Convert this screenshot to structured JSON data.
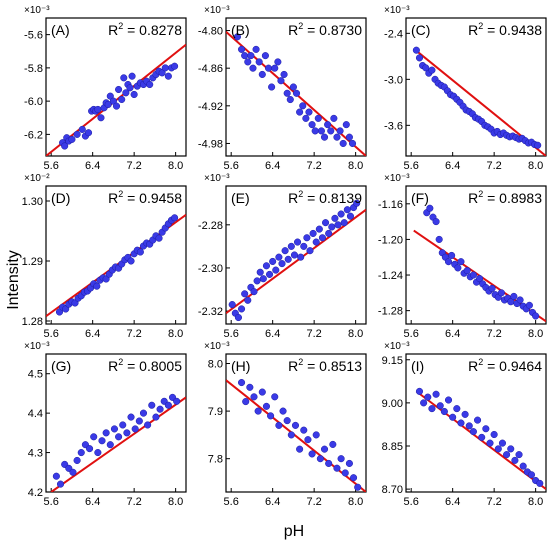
{
  "figure": {
    "ylabel": "Intensity",
    "xlabel": "pH"
  },
  "colors": {
    "point": "#3a3ae6",
    "point_edge": "#1a1aa0",
    "fit_line": "#e01010",
    "axis": "#000000"
  },
  "chart_data": [
    {
      "type": "scatter",
      "panel": "(A)",
      "r2": "0.8278",
      "exponent": "×10⁻³",
      "xlim": [
        5.5,
        8.2
      ],
      "ylim": [
        -6.33,
        -5.5
      ],
      "xticks": [
        5.6,
        6.4,
        7.2,
        8.0
      ],
      "xtick_labels": [
        "5.6",
        "6.4",
        "7.2",
        "8.0"
      ],
      "yticks": [
        -5.6,
        -5.8,
        -6.0,
        -6.2
      ],
      "ytick_labels": [
        "-5.6",
        "-5.8",
        "-6.0",
        "-6.2"
      ],
      "fit": [
        [
          5.5,
          -6.33
        ],
        [
          8.2,
          -5.66
        ]
      ],
      "x": [
        5.82,
        5.86,
        5.9,
        5.94,
        6.0,
        6.1,
        6.2,
        6.26,
        6.32,
        6.38,
        6.42,
        6.46,
        6.5,
        6.56,
        6.62,
        6.66,
        6.7,
        6.74,
        6.8,
        6.86,
        6.9,
        6.96,
        7.0,
        7.04,
        7.08,
        7.12,
        7.16,
        7.2,
        7.26,
        7.32,
        7.38,
        7.44,
        7.5,
        7.56,
        7.62,
        7.68,
        7.74,
        7.8,
        7.86,
        7.92,
        7.98
      ],
      "y": [
        -6.25,
        -6.27,
        -6.22,
        -6.24,
        -6.23,
        -6.2,
        -6.17,
        -6.21,
        -6.19,
        -6.06,
        -6.05,
        -6.06,
        -6.05,
        -6.1,
        -6.04,
        -6.01,
        -6.02,
        -5.97,
        -6.0,
        -6.03,
        -5.93,
        -5.99,
        -5.86,
        -5.95,
        -5.9,
        -5.92,
        -5.85,
        -5.96,
        -5.91,
        -5.89,
        -5.9,
        -5.88,
        -5.9,
        -5.86,
        -5.84,
        -5.82,
        -5.83,
        -5.8,
        -5.85,
        -5.8,
        -5.79
      ]
    },
    {
      "type": "scatter",
      "panel": "(B)",
      "r2": "0.8730",
      "exponent": "×10⁻³",
      "xlim": [
        5.5,
        8.2
      ],
      "ylim": [
        -5.0,
        -4.78
      ],
      "xticks": [
        5.6,
        6.4,
        7.2,
        8.0
      ],
      "xtick_labels": [
        "5.6",
        "6.4",
        "7.2",
        "8.0"
      ],
      "yticks": [
        -4.8,
        -4.86,
        -4.92,
        -4.98
      ],
      "ytick_labels": [
        "-4.80",
        "-4.86",
        "-4.92",
        "-4.98"
      ],
      "fit": [
        [
          5.5,
          -4.802
        ],
        [
          8.2,
          -5.0
        ]
      ],
      "x": [
        5.72,
        5.8,
        5.86,
        5.92,
        5.98,
        6.02,
        6.08,
        6.14,
        6.2,
        6.26,
        6.32,
        6.38,
        6.44,
        6.5,
        6.56,
        6.62,
        6.68,
        6.74,
        6.8,
        6.86,
        6.92,
        6.98,
        7.04,
        7.1,
        7.16,
        7.22,
        7.28,
        7.34,
        7.4,
        7.46,
        7.52,
        7.58,
        7.64,
        7.7,
        7.76,
        7.82,
        7.88,
        7.94
      ],
      "y": [
        -4.81,
        -4.83,
        -4.84,
        -4.85,
        -4.84,
        -4.86,
        -4.83,
        -4.85,
        -4.87,
        -4.84,
        -4.86,
        -4.89,
        -4.86,
        -4.85,
        -4.88,
        -4.87,
        -4.9,
        -4.91,
        -4.89,
        -4.9,
        -4.93,
        -4.92,
        -4.94,
        -4.93,
        -4.95,
        -4.96,
        -4.94,
        -4.96,
        -4.97,
        -4.95,
        -4.96,
        -4.94,
        -4.97,
        -4.96,
        -4.98,
        -4.95,
        -4.97,
        -4.98
      ]
    },
    {
      "type": "scatter",
      "panel": "(C)",
      "r2": "0.9438",
      "exponent": "×10⁻³",
      "xlim": [
        5.5,
        8.2
      ],
      "ylim": [
        -4.0,
        -2.2
      ],
      "xticks": [
        5.6,
        6.4,
        7.2,
        8.0
      ],
      "xtick_labels": [
        "5.6",
        "6.4",
        "7.2",
        "8.0"
      ],
      "yticks": [
        -2.4,
        -3.0,
        -3.6
      ],
      "ytick_labels": [
        "-2.4",
        "-3.0",
        "-3.6"
      ],
      "fit": [
        [
          5.65,
          -2.6
        ],
        [
          8.2,
          -4.0
        ]
      ],
      "x": [
        5.7,
        5.76,
        5.82,
        5.88,
        5.94,
        6.0,
        6.06,
        6.12,
        6.18,
        6.24,
        6.3,
        6.36,
        6.42,
        6.48,
        6.54,
        6.6,
        6.66,
        6.72,
        6.78,
        6.84,
        6.9,
        6.96,
        7.02,
        7.08,
        7.14,
        7.2,
        7.26,
        7.32,
        7.38,
        7.44,
        7.5,
        7.56,
        7.62,
        7.68,
        7.74,
        7.8,
        7.86,
        7.92,
        7.98,
        8.04
      ],
      "y": [
        -2.62,
        -2.72,
        -2.82,
        -2.85,
        -2.92,
        -2.88,
        -3.0,
        -3.05,
        -3.08,
        -3.1,
        -3.15,
        -3.2,
        -3.22,
        -3.26,
        -3.3,
        -3.35,
        -3.4,
        -3.42,
        -3.45,
        -3.5,
        -3.52,
        -3.55,
        -3.6,
        -3.62,
        -3.65,
        -3.7,
        -3.68,
        -3.72,
        -3.7,
        -3.73,
        -3.75,
        -3.74,
        -3.76,
        -3.78,
        -3.77,
        -3.8,
        -3.83,
        -3.82,
        -3.85,
        -3.86
      ]
    },
    {
      "type": "scatter",
      "panel": "(D)",
      "r2": "0.9458",
      "exponent": "×10⁻²",
      "xlim": [
        5.5,
        8.2
      ],
      "ylim": [
        1.2795,
        1.3025
      ],
      "xticks": [
        5.6,
        6.4,
        7.2,
        8.0
      ],
      "xtick_labels": [
        "5.6",
        "6.4",
        "7.2",
        "8.0"
      ],
      "yticks": [
        1.3,
        1.29,
        1.28
      ],
      "ytick_labels": [
        "1.30",
        "1.29",
        "1.28"
      ],
      "fit": [
        [
          5.5,
          1.2808
        ],
        [
          8.2,
          1.2977
        ]
      ],
      "x": [
        5.76,
        5.82,
        5.88,
        5.94,
        6.0,
        6.06,
        6.12,
        6.18,
        6.24,
        6.3,
        6.36,
        6.42,
        6.48,
        6.54,
        6.6,
        6.66,
        6.72,
        6.78,
        6.84,
        6.9,
        6.96,
        7.02,
        7.08,
        7.14,
        7.2,
        7.26,
        7.32,
        7.38,
        7.44,
        7.5,
        7.56,
        7.62,
        7.68,
        7.74,
        7.8,
        7.86,
        7.92,
        7.98
      ],
      "y": [
        1.2815,
        1.2823,
        1.282,
        1.2828,
        1.2832,
        1.283,
        1.2838,
        1.2842,
        1.2848,
        1.285,
        1.2855,
        1.2862,
        1.2858,
        1.2868,
        1.2872,
        1.287,
        1.2878,
        1.2885,
        1.289,
        1.2888,
        1.2895,
        1.2902,
        1.2906,
        1.29,
        1.2912,
        1.2918,
        1.2915,
        1.2925,
        1.293,
        1.2928,
        1.2935,
        1.2942,
        1.2938,
        1.2948,
        1.2955,
        1.2962,
        1.2968,
        1.2972
      ]
    },
    {
      "type": "scatter",
      "panel": "(E)",
      "r2": "0.8139",
      "exponent": "×10⁻³",
      "xlim": [
        5.5,
        8.2
      ],
      "ylim": [
        -2.326,
        -2.262
      ],
      "xticks": [
        5.6,
        6.4,
        7.2,
        8.0
      ],
      "xtick_labels": [
        "5.6",
        "6.4",
        "7.2",
        "8.0"
      ],
      "yticks": [
        -2.28,
        -2.3,
        -2.32
      ],
      "ytick_labels": [
        "-2.28",
        "-2.30",
        "-2.32"
      ],
      "fit": [
        [
          5.5,
          -2.321
        ],
        [
          8.2,
          -2.273
        ]
      ],
      "x": [
        5.62,
        5.68,
        5.74,
        5.8,
        5.86,
        5.92,
        5.98,
        6.04,
        6.1,
        6.16,
        6.22,
        6.28,
        6.34,
        6.4,
        6.46,
        6.52,
        6.58,
        6.64,
        6.7,
        6.76,
        6.82,
        6.88,
        6.94,
        7.0,
        7.06,
        7.12,
        7.18,
        7.24,
        7.3,
        7.36,
        7.42,
        7.48,
        7.54,
        7.6,
        7.66,
        7.72,
        7.78,
        7.84,
        7.9,
        7.96,
        8.02
      ],
      "y": [
        -2.317,
        -2.321,
        -2.323,
        -2.319,
        -2.312,
        -2.315,
        -2.309,
        -2.311,
        -2.306,
        -2.302,
        -2.305,
        -2.299,
        -2.303,
        -2.297,
        -2.301,
        -2.295,
        -2.298,
        -2.292,
        -2.296,
        -2.29,
        -2.294,
        -2.288,
        -2.295,
        -2.29,
        -2.286,
        -2.292,
        -2.284,
        -2.288,
        -2.282,
        -2.286,
        -2.279,
        -2.284,
        -2.281,
        -2.277,
        -2.28,
        -2.275,
        -2.279,
        -2.273,
        -2.276,
        -2.272,
        -2.27
      ]
    },
    {
      "type": "scatter",
      "panel": "(F)",
      "r2": "0.8983",
      "exponent": "×10⁻³",
      "xlim": [
        5.5,
        8.2
      ],
      "ylim": [
        -1.295,
        -1.14
      ],
      "xticks": [
        5.6,
        6.4,
        7.2,
        8.0
      ],
      "xtick_labels": [
        "5.6",
        "6.4",
        "7.2",
        "8.0"
      ],
      "yticks": [
        -1.16,
        -1.2,
        -1.24,
        -1.28
      ],
      "ytick_labels": [
        "-1.16",
        "-1.20",
        "-1.24",
        "-1.28"
      ],
      "fit": [
        [
          5.65,
          -1.19
        ],
        [
          8.2,
          -1.292
        ]
      ],
      "x": [
        5.9,
        5.96,
        6.02,
        6.08,
        6.14,
        6.2,
        6.26,
        6.32,
        6.38,
        6.44,
        6.5,
        6.56,
        6.62,
        6.68,
        6.74,
        6.8,
        6.86,
        6.92,
        6.98,
        7.04,
        7.1,
        7.16,
        7.22,
        7.28,
        7.34,
        7.4,
        7.46,
        7.52,
        7.58,
        7.64,
        7.7,
        7.76,
        7.82,
        7.88,
        7.94,
        8.0
      ],
      "y": [
        -1.17,
        -1.165,
        -1.175,
        -1.18,
        -1.2,
        -1.215,
        -1.22,
        -1.225,
        -1.218,
        -1.228,
        -1.232,
        -1.225,
        -1.238,
        -1.235,
        -1.242,
        -1.24,
        -1.248,
        -1.244,
        -1.25,
        -1.254,
        -1.258,
        -1.255,
        -1.262,
        -1.265,
        -1.26,
        -1.268,
        -1.266,
        -1.27,
        -1.264,
        -1.272,
        -1.268,
        -1.275,
        -1.278,
        -1.274,
        -1.282,
        -1.286
      ]
    },
    {
      "type": "scatter",
      "panel": "(G)",
      "r2": "0.8005",
      "exponent": "×10⁻³",
      "xlim": [
        5.5,
        8.2
      ],
      "ylim": [
        4.2,
        4.55
      ],
      "xticks": [
        5.6,
        6.4,
        7.2,
        8.0
      ],
      "xtick_labels": [
        "5.6",
        "6.4",
        "7.2",
        "8.0"
      ],
      "yticks": [
        4.2,
        4.3,
        4.4,
        4.5
      ],
      "ytick_labels": [
        "4.2",
        "4.3",
        "4.4",
        "4.5"
      ],
      "fit": [
        [
          5.6,
          4.2
        ],
        [
          8.2,
          4.44
        ]
      ],
      "x": [
        5.7,
        5.78,
        5.86,
        5.94,
        6.02,
        6.1,
        6.18,
        6.26,
        6.34,
        6.42,
        6.5,
        6.58,
        6.66,
        6.74,
        6.82,
        6.9,
        6.98,
        7.06,
        7.14,
        7.22,
        7.3,
        7.38,
        7.46,
        7.54,
        7.62,
        7.7,
        7.78,
        7.86,
        7.94,
        8.02
      ],
      "y": [
        4.24,
        4.22,
        4.27,
        4.26,
        4.25,
        4.28,
        4.3,
        4.32,
        4.31,
        4.34,
        4.3,
        4.33,
        4.35,
        4.32,
        4.36,
        4.34,
        4.37,
        4.35,
        4.39,
        4.36,
        4.38,
        4.4,
        4.37,
        4.42,
        4.39,
        4.41,
        4.43,
        4.42,
        4.44,
        4.43
      ]
    },
    {
      "type": "scatter",
      "panel": "(H)",
      "r2": "0.8513",
      "exponent": "×10⁻³",
      "xlim": [
        5.5,
        8.2
      ],
      "ylim": [
        7.73,
        8.02
      ],
      "xticks": [
        5.6,
        6.4,
        7.2,
        8.0
      ],
      "xtick_labels": [
        "5.6",
        "6.4",
        "7.2",
        "8.0"
      ],
      "yticks": [
        8.0,
        7.9,
        7.8
      ],
      "ytick_labels": [
        "8.0",
        "7.9",
        "7.8"
      ],
      "fit": [
        [
          5.5,
          7.965
        ],
        [
          8.2,
          7.73
        ]
      ],
      "x": [
        5.8,
        5.88,
        5.96,
        6.04,
        6.12,
        6.2,
        6.28,
        6.36,
        6.44,
        6.52,
        6.6,
        6.68,
        6.76,
        6.84,
        6.92,
        7.0,
        7.08,
        7.16,
        7.24,
        7.32,
        7.4,
        7.48,
        7.56,
        7.64,
        7.72,
        7.8,
        7.88,
        7.96,
        8.04
      ],
      "y": [
        7.96,
        7.92,
        7.95,
        7.93,
        7.9,
        7.94,
        7.91,
        7.89,
        7.93,
        7.87,
        7.9,
        7.88,
        7.85,
        7.87,
        7.82,
        7.86,
        7.84,
        7.81,
        7.85,
        7.8,
        7.82,
        7.79,
        7.83,
        7.78,
        7.8,
        7.77,
        7.79,
        7.76,
        7.74
      ]
    },
    {
      "type": "scatter",
      "panel": "(I)",
      "r2": "0.9464",
      "exponent": "×10⁻³",
      "xlim": [
        5.5,
        8.2
      ],
      "ylim": [
        8.69,
        9.17
      ],
      "xticks": [
        5.6,
        6.4,
        7.2,
        8.0
      ],
      "xtick_labels": [
        "5.6",
        "6.4",
        "7.2",
        "8.0"
      ],
      "yticks": [
        9.15,
        9.0,
        8.85,
        8.7
      ],
      "ytick_labels": [
        "9.15",
        "9.00",
        "8.85",
        "8.70"
      ],
      "fit": [
        [
          5.7,
          9.04
        ],
        [
          8.2,
          8.7
        ]
      ],
      "x": [
        5.76,
        5.84,
        5.92,
        6.0,
        6.08,
        6.16,
        6.24,
        6.32,
        6.4,
        6.48,
        6.56,
        6.64,
        6.72,
        6.8,
        6.88,
        6.96,
        7.04,
        7.12,
        7.2,
        7.28,
        7.36,
        7.44,
        7.52,
        7.6,
        7.68,
        7.76,
        7.84,
        7.92,
        8.0,
        8.08
      ],
      "y": [
        9.04,
        9.0,
        9.02,
        8.98,
        9.03,
        8.99,
        8.97,
        9.01,
        8.95,
        8.98,
        8.93,
        8.96,
        8.92,
        8.9,
        8.94,
        8.88,
        8.91,
        8.86,
        8.89,
        8.84,
        8.86,
        8.82,
        8.84,
        8.8,
        8.82,
        8.78,
        8.76,
        8.75,
        8.73,
        8.72
      ]
    }
  ]
}
